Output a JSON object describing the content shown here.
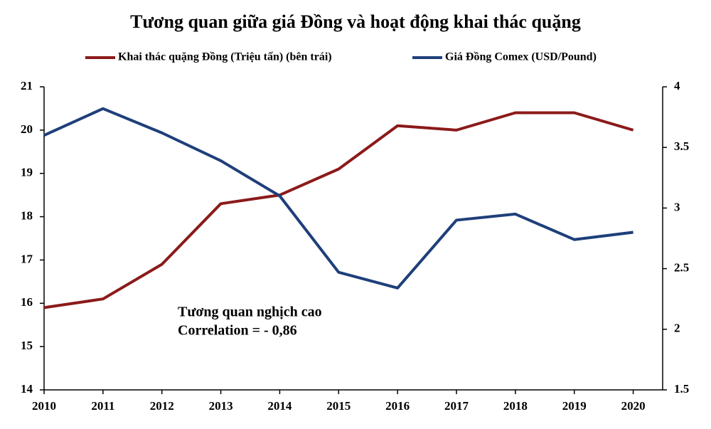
{
  "chart_data": {
    "type": "line",
    "title": "Tương quan  giữa giá Đồng và hoạt động khai thác quặng",
    "x": [
      2010,
      2011,
      2012,
      2013,
      2014,
      2015,
      2016,
      2017,
      2018,
      2019,
      2020
    ],
    "xlim": [
      2010,
      2020.5
    ],
    "xticks": [
      2010,
      2011,
      2012,
      2013,
      2014,
      2015,
      2016,
      2017,
      2018,
      2019,
      2020
    ],
    "ylim": [
      14,
      21
    ],
    "yticks": [
      14,
      15,
      16,
      17,
      18,
      19,
      20,
      21
    ],
    "y2lim": [
      1.5,
      4
    ],
    "y2ticks": [
      1.5,
      2,
      2.5,
      3,
      3.5,
      4
    ],
    "series": [
      {
        "name": "Khai thác quặng Đồng (Triệu tấn) (bên trái)",
        "color": "#8b1a1a",
        "values": [
          15.9,
          16.1,
          16.9,
          18.3,
          18.5,
          19.1,
          20.1,
          20.0,
          20.4,
          20.4,
          20.0
        ]
      },
      {
        "name": "Giá  Đồng Comex  (USD/Pound)",
        "color": "#1f3f7a",
        "axis": "y2",
        "values": [
          3.6,
          3.82,
          3.62,
          3.39,
          3.1,
          2.47,
          2.34,
          2.9,
          2.95,
          2.74,
          2.8
        ]
      }
    ],
    "annotations": [
      "Tương quan nghịch cao",
      "Correlation = - 0,86"
    ],
    "grid": false
  }
}
